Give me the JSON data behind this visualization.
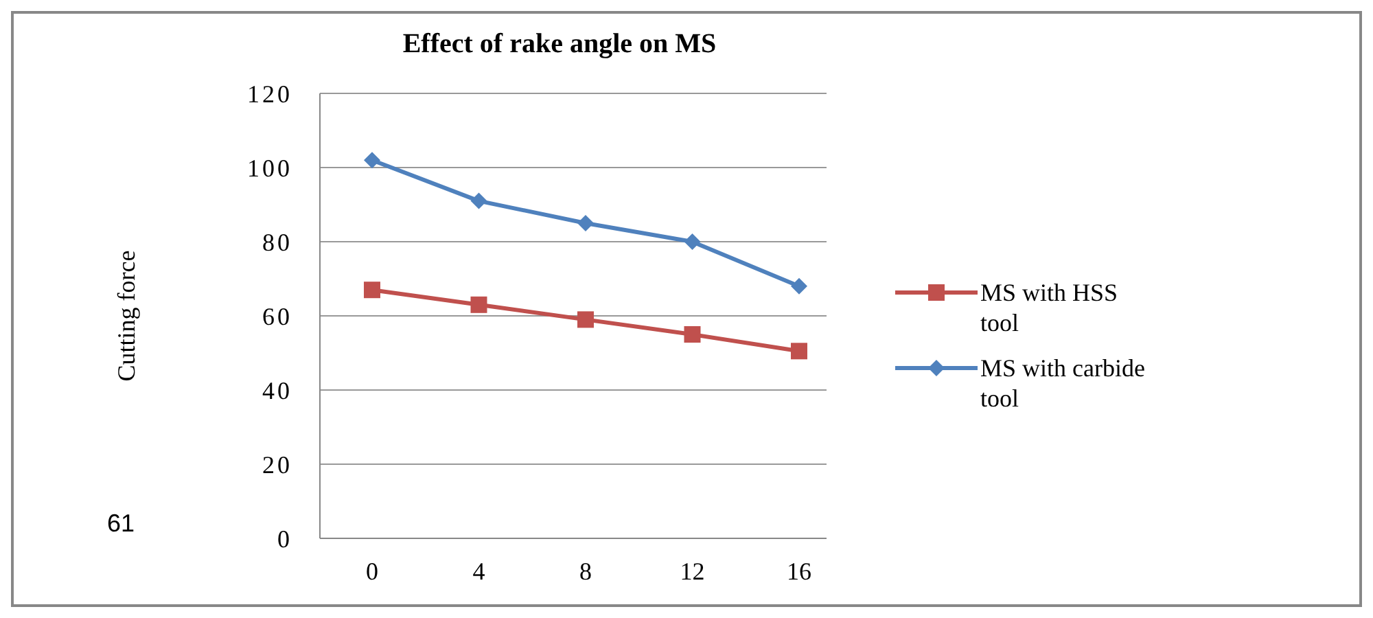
{
  "chart_data": {
    "type": "line",
    "title": "Effect of rake angle on MS",
    "ylabel": "Cutting force",
    "categories": [
      "0",
      "4",
      "8",
      "12",
      "16"
    ],
    "series": [
      {
        "name": "MS with HSS tool",
        "color": "#c0504d",
        "marker": "square",
        "values": [
          67,
          63,
          59,
          55,
          50.5
        ]
      },
      {
        "name": "MS with carbide tool",
        "color": "#4f81bd",
        "marker": "diamond",
        "values": [
          102,
          91,
          85,
          80,
          68
        ]
      }
    ],
    "ylim": [
      0,
      120
    ],
    "yticks": [
      0,
      20,
      40,
      60,
      80,
      100,
      120
    ],
    "grid": "y",
    "legend": "right",
    "annotations": [
      "61"
    ]
  }
}
